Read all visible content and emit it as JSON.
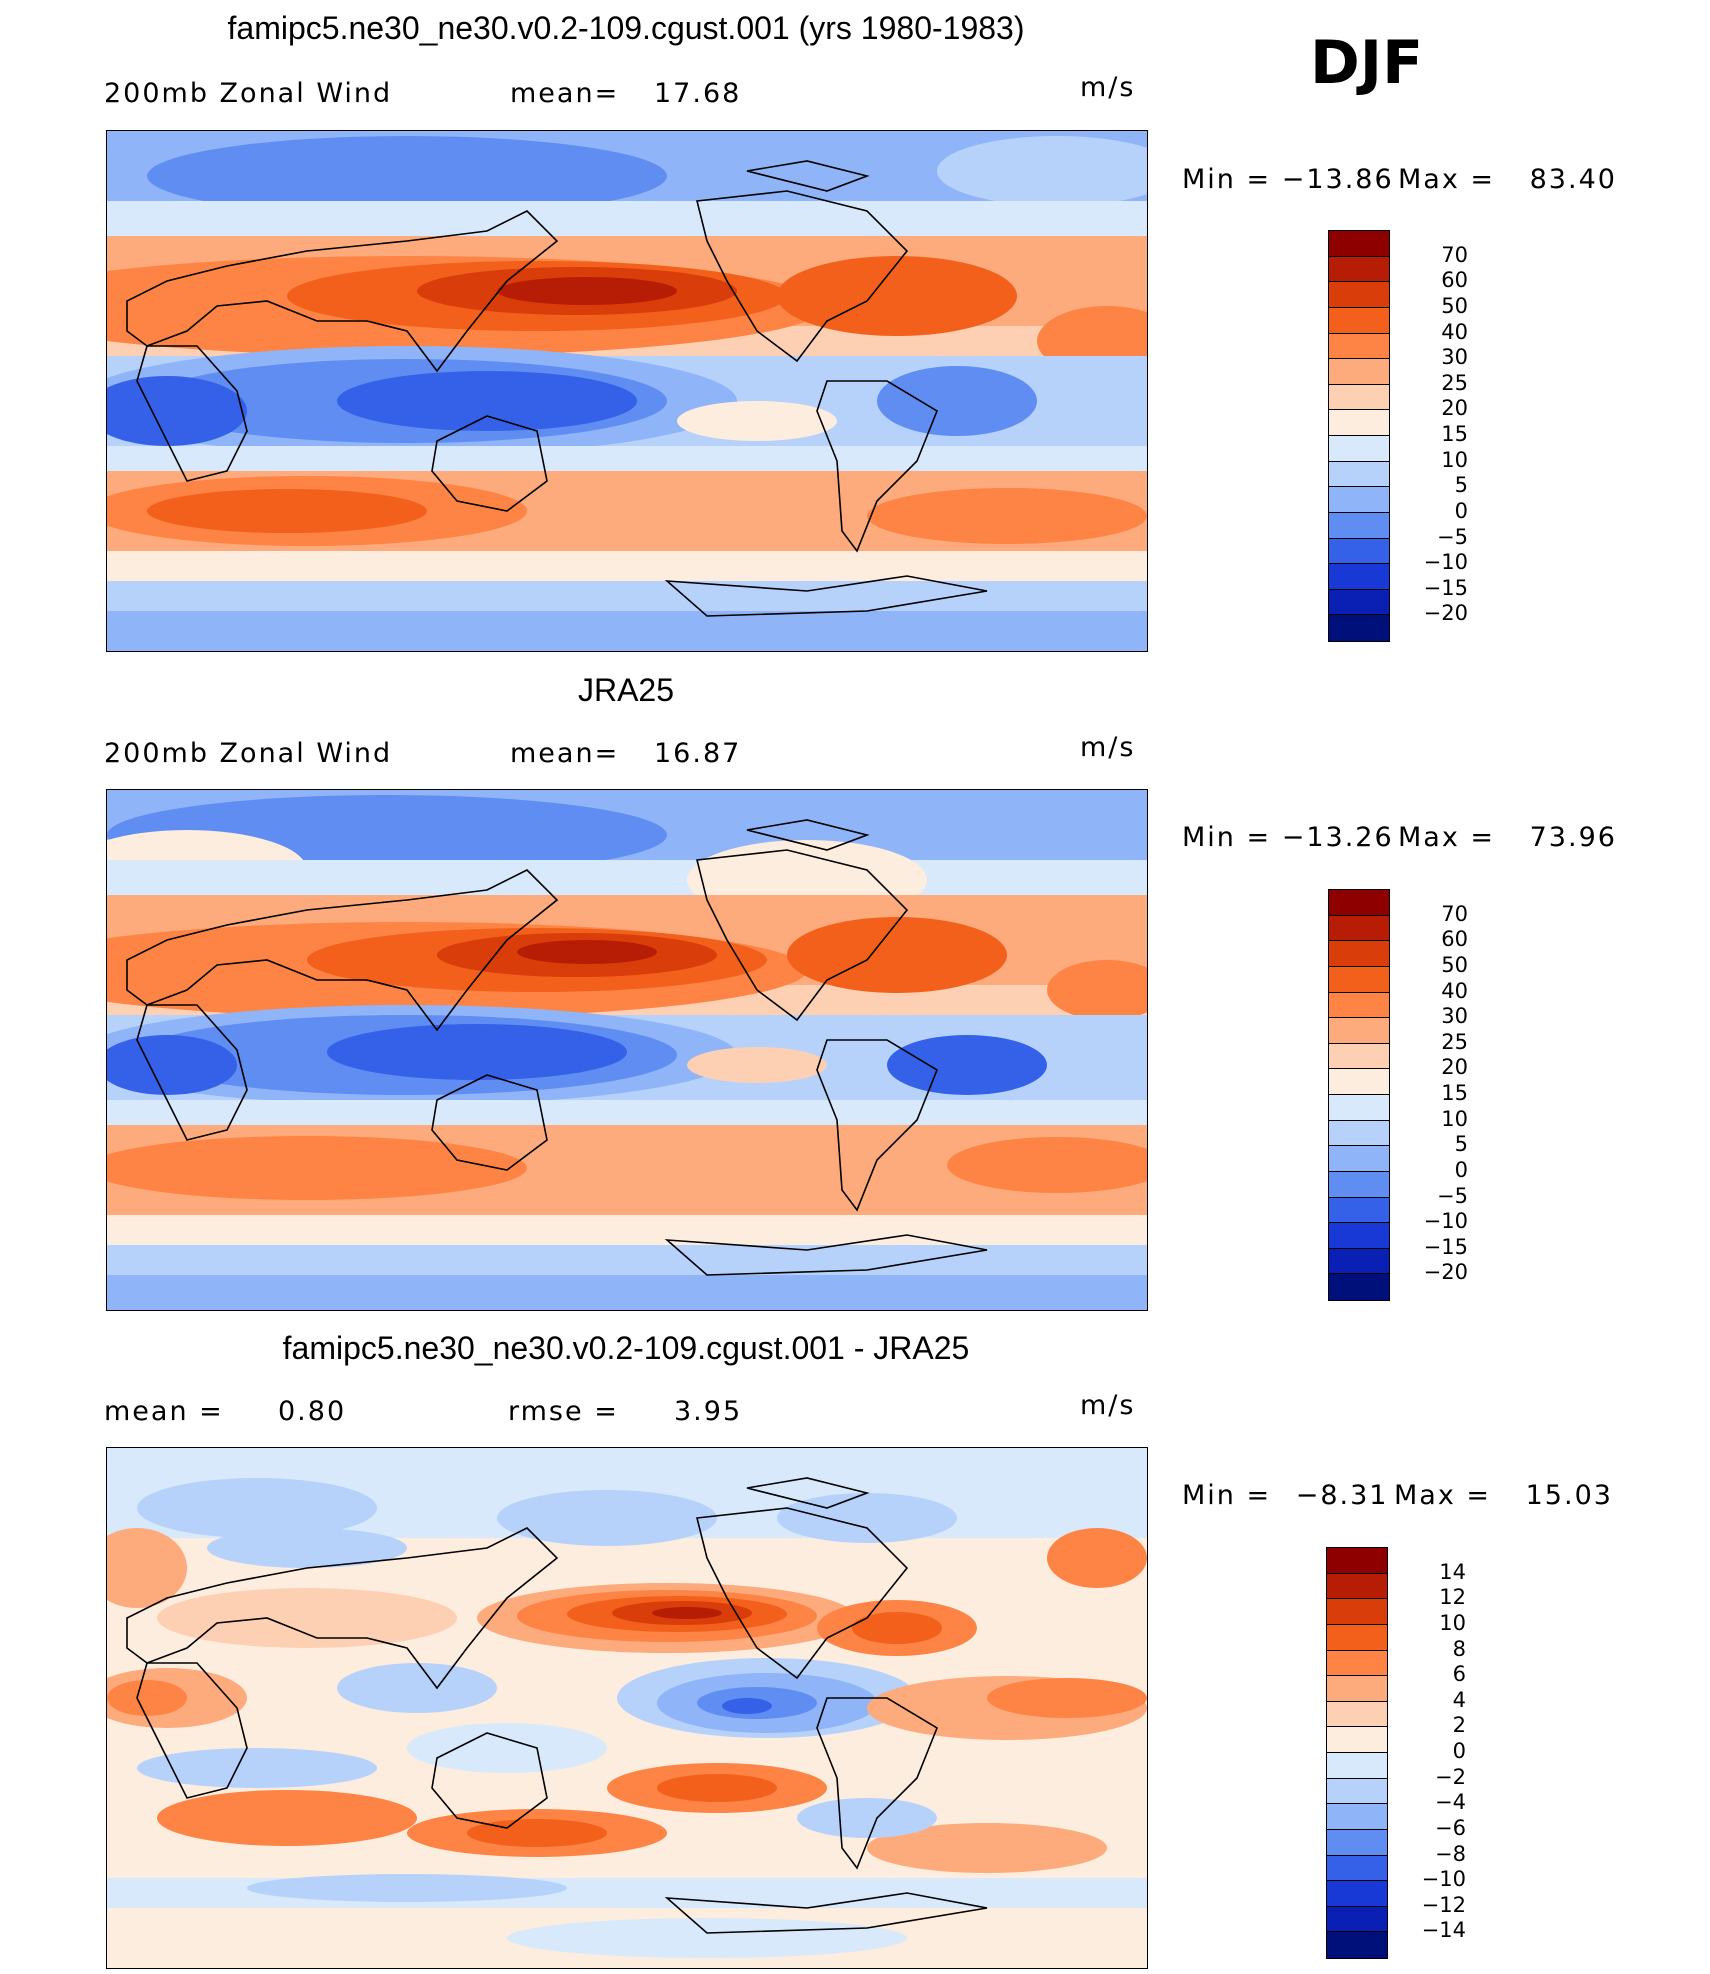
{
  "season": "DJF",
  "units": "m/s",
  "panels": [
    {
      "title": "famipc5.ne30_ne30.v0.2-109.cgust.001 (yrs 1980-1983)",
      "left_label": "200mb Zonal Wind",
      "stat_label": "mean=",
      "stat_value": "17.68",
      "units": "m/s",
      "min_label": "Min",
      "min_value": "−13.86",
      "max_label": "Max",
      "max_value": "83.40",
      "colorbar_labels": [
        "70",
        "60",
        "50",
        "40",
        "30",
        "25",
        "20",
        "15",
        "10",
        "5",
        "0",
        "−5",
        "−10",
        "−15",
        "−20"
      ],
      "colorbar_colors": [
        "#8e0000",
        "#b71d04",
        "#d93d0a",
        "#f2601c",
        "#fd8445",
        "#fdaa7c",
        "#fdd0b4",
        "#fdeddf",
        "#d8e9fb",
        "#b6d2fb",
        "#8fb4f8",
        "#5f8df2",
        "#3461e8",
        "#1839d6",
        "#0a20b4",
        "#00107a"
      ]
    },
    {
      "title": "JRA25",
      "left_label": "200mb Zonal Wind",
      "stat_label": "mean=",
      "stat_value": "16.87",
      "units": "m/s",
      "min_label": "Min",
      "min_value": "−13.26",
      "max_label": "Max",
      "max_value": "73.96",
      "colorbar_labels": [
        "70",
        "60",
        "50",
        "40",
        "30",
        "25",
        "20",
        "15",
        "10",
        "5",
        "0",
        "−5",
        "−10",
        "−15",
        "−20"
      ],
      "colorbar_colors": [
        "#8e0000",
        "#b71d04",
        "#d93d0a",
        "#f2601c",
        "#fd8445",
        "#fdaa7c",
        "#fdd0b4",
        "#fdeddf",
        "#d8e9fb",
        "#b6d2fb",
        "#8fb4f8",
        "#5f8df2",
        "#3461e8",
        "#1839d6",
        "#0a20b4",
        "#00107a"
      ]
    },
    {
      "title": "famipc5.ne30_ne30.v0.2-109.cgust.001 - JRA25",
      "left_label": "mean =",
      "left_value": "0.80",
      "stat_label": "rmse =",
      "stat_value": "3.95",
      "units": "m/s",
      "min_label": "Min",
      "min_value": "−8.31",
      "max_label": "Max",
      "max_value": "15.03",
      "colorbar_labels": [
        "14",
        "12",
        "10",
        "8",
        "6",
        "4",
        "2",
        "0",
        "−2",
        "−4",
        "−6",
        "−8",
        "−10",
        "−12",
        "−14"
      ],
      "colorbar_colors": [
        "#8e0000",
        "#b71d04",
        "#d93d0a",
        "#f2601c",
        "#fd8445",
        "#fdaa7c",
        "#fdd0b4",
        "#fdeddf",
        "#d8e9fb",
        "#b6d2fb",
        "#8fb4f8",
        "#5f8df2",
        "#3461e8",
        "#1839d6",
        "#0a20b4",
        "#00107a"
      ]
    }
  ]
}
